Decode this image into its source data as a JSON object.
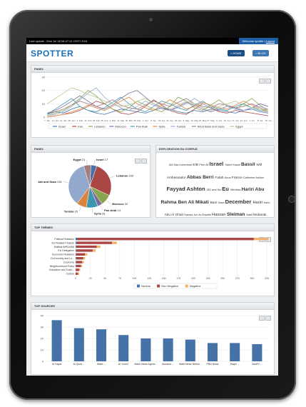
{
  "topbar": {
    "last_update": "Last update : Mon Jul 18 06:47:12 CEST 2011",
    "welcome": "Welcome spotter | ",
    "logout": "Logout"
  },
  "header": {
    "logo": "SPOTTER",
    "home_label": "HOME",
    "blog_label": "BLOG"
  },
  "panels": {
    "panel1_title": "PANEL",
    "panel2_title": "PANEL",
    "corpus_title": "EXPLORATION DU CORPUS",
    "themes_title": "TOP THÈMES",
    "sources_title": "TOP SOURCES"
  },
  "icons": {
    "home": "home-icon",
    "blog": "speech-bubble-icon",
    "tools": [
      "print-icon",
      "download-icon"
    ]
  },
  "chart_data": [
    {
      "type": "line",
      "ylim": [
        0,
        30
      ],
      "yticks": [
        0,
        10,
        20,
        30
      ],
      "x": [
        "7. Jan",
        "14. Jan",
        "21. Jan",
        "28. Jan",
        "4. Feb",
        "11. Feb",
        "18. Feb",
        "25. Feb",
        "4. Mar",
        "11. Mar",
        "18. Mar",
        "25. Mar",
        "1. Apr",
        "8. Apr",
        "15. Apr",
        "22. Apr",
        "29. Apr",
        "6. May",
        "13. May",
        "20. May",
        "27. May",
        "3. Jun",
        "10. Jun",
        "17. Jun",
        "24. Jun",
        "1. Jul",
        "8. Jul",
        "15. Jul"
      ],
      "series": [
        {
          "name": "Israel",
          "color": "#4572a7",
          "values": [
            2,
            4,
            3,
            6,
            8,
            5,
            3,
            2,
            4,
            6,
            5,
            4,
            3,
            5,
            7,
            6,
            4,
            3,
            5,
            4,
            6,
            5,
            4,
            3,
            5,
            6,
            4,
            3
          ]
        },
        {
          "name": "Iran",
          "color": "#aa4643",
          "values": [
            0,
            1,
            2,
            3,
            5,
            8,
            12,
            10,
            6,
            3,
            2,
            4,
            8,
            13,
            9,
            5,
            3,
            2,
            6,
            10,
            7,
            4,
            3,
            5,
            4,
            3,
            2,
            1
          ]
        },
        {
          "name": "Lebanon",
          "color": "#89a54e",
          "values": [
            1,
            3,
            5,
            9,
            14,
            20,
            16,
            10,
            6,
            4,
            7,
            12,
            9,
            6,
            4,
            8,
            15,
            12,
            7,
            5,
            9,
            13,
            8,
            6,
            10,
            14,
            9,
            5
          ]
        },
        {
          "name": "Morocco",
          "color": "#80699b",
          "values": [
            3,
            5,
            8,
            12,
            16,
            12,
            8,
            6,
            9,
            14,
            18,
            20,
            15,
            10,
            7,
            5,
            8,
            11,
            9,
            6,
            4,
            6,
            8,
            7,
            5,
            7,
            10,
            8
          ]
        },
        {
          "name": "Pan Arab",
          "color": "#3d96ae",
          "values": [
            2,
            6,
            10,
            14,
            8,
            5,
            4,
            7,
            11,
            15,
            10,
            6,
            4,
            8,
            12,
            10,
            7,
            5,
            9,
            12,
            8,
            6,
            5,
            8,
            10,
            7,
            5,
            4
          ]
        },
        {
          "name": "Syria",
          "color": "#db843d",
          "values": [
            0,
            1,
            2,
            4,
            6,
            9,
            7,
            5,
            8,
            12,
            15,
            10,
            7,
            5,
            9,
            13,
            10,
            6,
            8,
            11,
            9,
            7,
            6,
            9,
            12,
            9,
            6,
            4
          ]
        },
        {
          "name": "Tunisia",
          "color": "#92a8cd",
          "values": [
            1,
            2,
            4,
            8,
            13,
            18,
            22,
            15,
            10,
            7,
            5,
            8,
            12,
            9,
            6,
            5,
            7,
            10,
            14,
            10,
            7,
            6,
            8,
            6,
            5,
            7,
            8,
            6
          ]
        },
        {
          "name": "West Bank and Gaza",
          "color": "#a47d7c",
          "values": [
            3,
            4,
            6,
            9,
            12,
            10,
            8,
            10,
            13,
            9,
            7,
            6,
            9,
            12,
            10,
            8,
            11,
            14,
            10,
            8,
            7,
            10,
            9,
            7,
            8,
            10,
            7,
            5
          ]
        },
        {
          "name": "Egypt",
          "color": "#b5ca92",
          "values": [
            10,
            14,
            18,
            22,
            20,
            17,
            15,
            12,
            10,
            8,
            9,
            12,
            14,
            10,
            8,
            6,
            9,
            12,
            10,
            7,
            5,
            8,
            10,
            12,
            9,
            7,
            6,
            5
          ]
        }
      ]
    },
    {
      "type": "pie",
      "slices": [
        {
          "label": "Israel",
          "value": 17,
          "color": "#4572a7"
        },
        {
          "label": "Lebanon",
          "value": 102,
          "color": "#aa4643"
        },
        {
          "label": "Morocco",
          "value": 32,
          "color": "#89a54e"
        },
        {
          "label": "Pan Arab",
          "value": 14,
          "color": "#80699b"
        },
        {
          "label": "Syria",
          "value": 33,
          "color": "#3d96ae"
        },
        {
          "label": "Tunisia",
          "value": 29,
          "color": "#db843d"
        },
        {
          "label": "Jab and Gaza",
          "value": 134,
          "color": "#92a8cd"
        },
        {
          "label": "Egypt",
          "value": 21,
          "color": "#a47d7c"
        }
      ]
    },
    {
      "type": "bar",
      "orientation": "horizontal",
      "stacked": true,
      "categories": [
        "Political Relations",
        "EU Related Projects",
        "Multilat./MPD/UfM",
        "EU Delegation",
        "Economic Relations",
        "Civil society and Lo...",
        "Economy",
        "Neighbourhood Policy",
        "Education and Traini...",
        "Culture"
      ],
      "xlim": [
        0,
        325
      ],
      "xticks": [
        0,
        25,
        50,
        75,
        100,
        125,
        150,
        175,
        200,
        225,
        250,
        275,
        300,
        325
      ],
      "series": [
        {
          "name": "Neutral",
          "color": "#4572a7",
          "values": [
            3,
            2,
            1,
            1,
            1,
            1,
            1,
            1,
            0,
            0
          ]
        },
        {
          "name": "Non Negative",
          "color": "#aa4643",
          "values": [
            300,
            60,
            35,
            28,
            15,
            12,
            10,
            8,
            6,
            4
          ]
        },
        {
          "name": "Negative",
          "color": "#f2b26b",
          "values": [
            25,
            8,
            6,
            5,
            4,
            3,
            3,
            2,
            2,
            2
          ]
        }
      ]
    },
    {
      "type": "bar",
      "categories": [
        "Al Hayat",
        "Al Quds ...",
        "Wafd ...",
        "Al Youm7",
        "Masri News Agenc...",
        "Annahar ...",
        "Wafa News Netwo...",
        "PNN News",
        "Elaph ...",
        "AsiaFil ..."
      ],
      "ylim": [
        0,
        40
      ],
      "yticks": [
        0,
        10,
        20,
        30,
        40
      ],
      "values": [
        36,
        29,
        28,
        23,
        20,
        20,
        19,
        16,
        16,
        15
      ],
      "color": "#4572a7"
    }
  ],
  "corpus_words": [
    {
      "text": "Abi",
      "size": 4
    },
    {
      "text": "Saa",
      "size": 4
    },
    {
      "text": "Lieberman",
      "size": 4
    },
    {
      "text": "EIB",
      "size": 5
    },
    {
      "text": "Peer",
      "size": 4
    },
    {
      "text": "Ali",
      "size": 4
    },
    {
      "text": "Israel",
      "size": 8
    },
    {
      "text": "Samir Kassir",
      "size": 4
    },
    {
      "text": "Bassil",
      "size": 7
    },
    {
      "text": "Will",
      "size": 5
    },
    {
      "text": "Ambassador",
      "size": 5
    },
    {
      "text": "Abbas",
      "size": 7
    },
    {
      "text": "Berri",
      "size": 7
    },
    {
      "text": "Fatah",
      "size": 5
    },
    {
      "text": "Aoun",
      "size": 4
    },
    {
      "text": "France",
      "size": 5
    },
    {
      "text": "Catherine Ashton",
      "size": 4
    },
    {
      "text": "Fayyad",
      "size": 8
    },
    {
      "text": "Ashton",
      "size": 8
    },
    {
      "text": "Un",
      "size": 5
    },
    {
      "text": "and His",
      "size": 4
    },
    {
      "text": "Eu",
      "size": 8
    },
    {
      "text": "Wireless",
      "size": 4
    },
    {
      "text": "Hariri",
      "size": 7
    },
    {
      "text": "Abu Rahma",
      "size": 7
    },
    {
      "text": "Ben Ali",
      "size": 7
    },
    {
      "text": "Mikati",
      "size": 7
    },
    {
      "text": "Bani",
      "size": 5
    },
    {
      "text": "Gaza",
      "size": 4
    },
    {
      "text": "December",
      "size": 8
    },
    {
      "text": "Hariri",
      "size": 6
    },
    {
      "text": "Kahn",
      "size": 4
    },
    {
      "text": "Abu Al Ghait",
      "size": 5
    },
    {
      "text": "Hamas",
      "size": 4
    },
    {
      "text": "Jun",
      "size": 4
    },
    {
      "text": "Al-Shweiki",
      "size": 4
    },
    {
      "text": "Hassan",
      "size": 6
    },
    {
      "text": "Sleiman",
      "size": 7
    },
    {
      "text": "Nabil",
      "size": 4
    },
    {
      "text": "Mubarak",
      "size": 5
    }
  ]
}
